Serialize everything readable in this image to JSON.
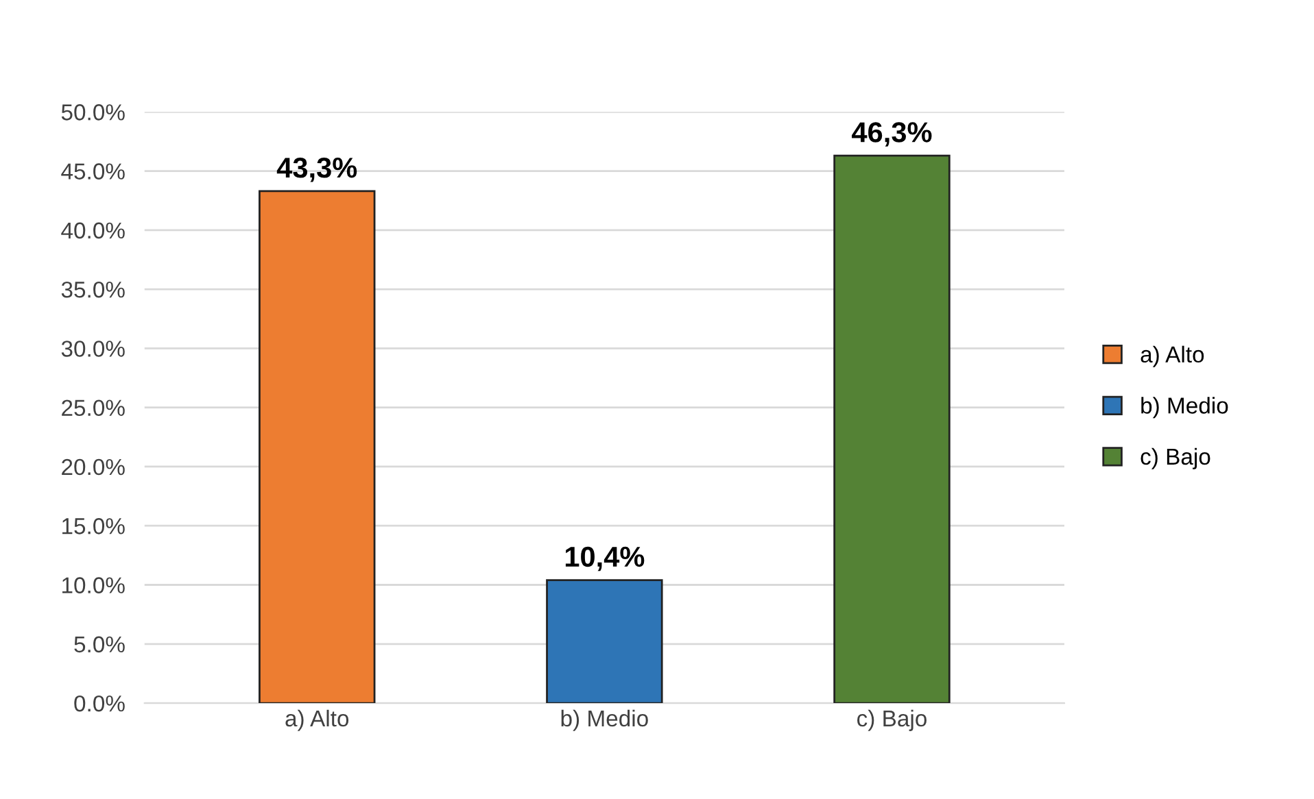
{
  "chart_data": {
    "type": "bar",
    "categories": [
      "a) Alto",
      "b) Medio",
      "c) Bajo"
    ],
    "series": [
      {
        "name": "a) Alto",
        "color": "#ed7d31",
        "values": [
          43.3,
          null,
          null
        ],
        "value_labels": [
          "43,3%",
          null,
          null
        ]
      },
      {
        "name": "b) Medio",
        "color": "#2e75b6",
        "values": [
          null,
          10.4,
          null
        ],
        "value_labels": [
          null,
          "10,4%",
          null
        ]
      },
      {
        "name": "c) Bajo",
        "color": "#548235",
        "values": [
          null,
          null,
          46.3
        ],
        "value_labels": [
          null,
          null,
          "46,3%"
        ]
      }
    ],
    "ylim": [
      0,
      50
    ],
    "yticks": [
      {
        "value": 0,
        "label": "0.0%"
      },
      {
        "value": 5,
        "label": "5.0%"
      },
      {
        "value": 10,
        "label": "10.0%"
      },
      {
        "value": 15,
        "label": "15.0%"
      },
      {
        "value": 20,
        "label": "20.0%"
      },
      {
        "value": 25,
        "label": "25.0%"
      },
      {
        "value": 30,
        "label": "30.0%"
      },
      {
        "value": 35,
        "label": "35.0%"
      },
      {
        "value": 40,
        "label": "40.0%"
      },
      {
        "value": 45,
        "label": "45.0%"
      },
      {
        "value": 50,
        "label": "50.0%"
      }
    ],
    "grid": "y",
    "legend": "right"
  }
}
